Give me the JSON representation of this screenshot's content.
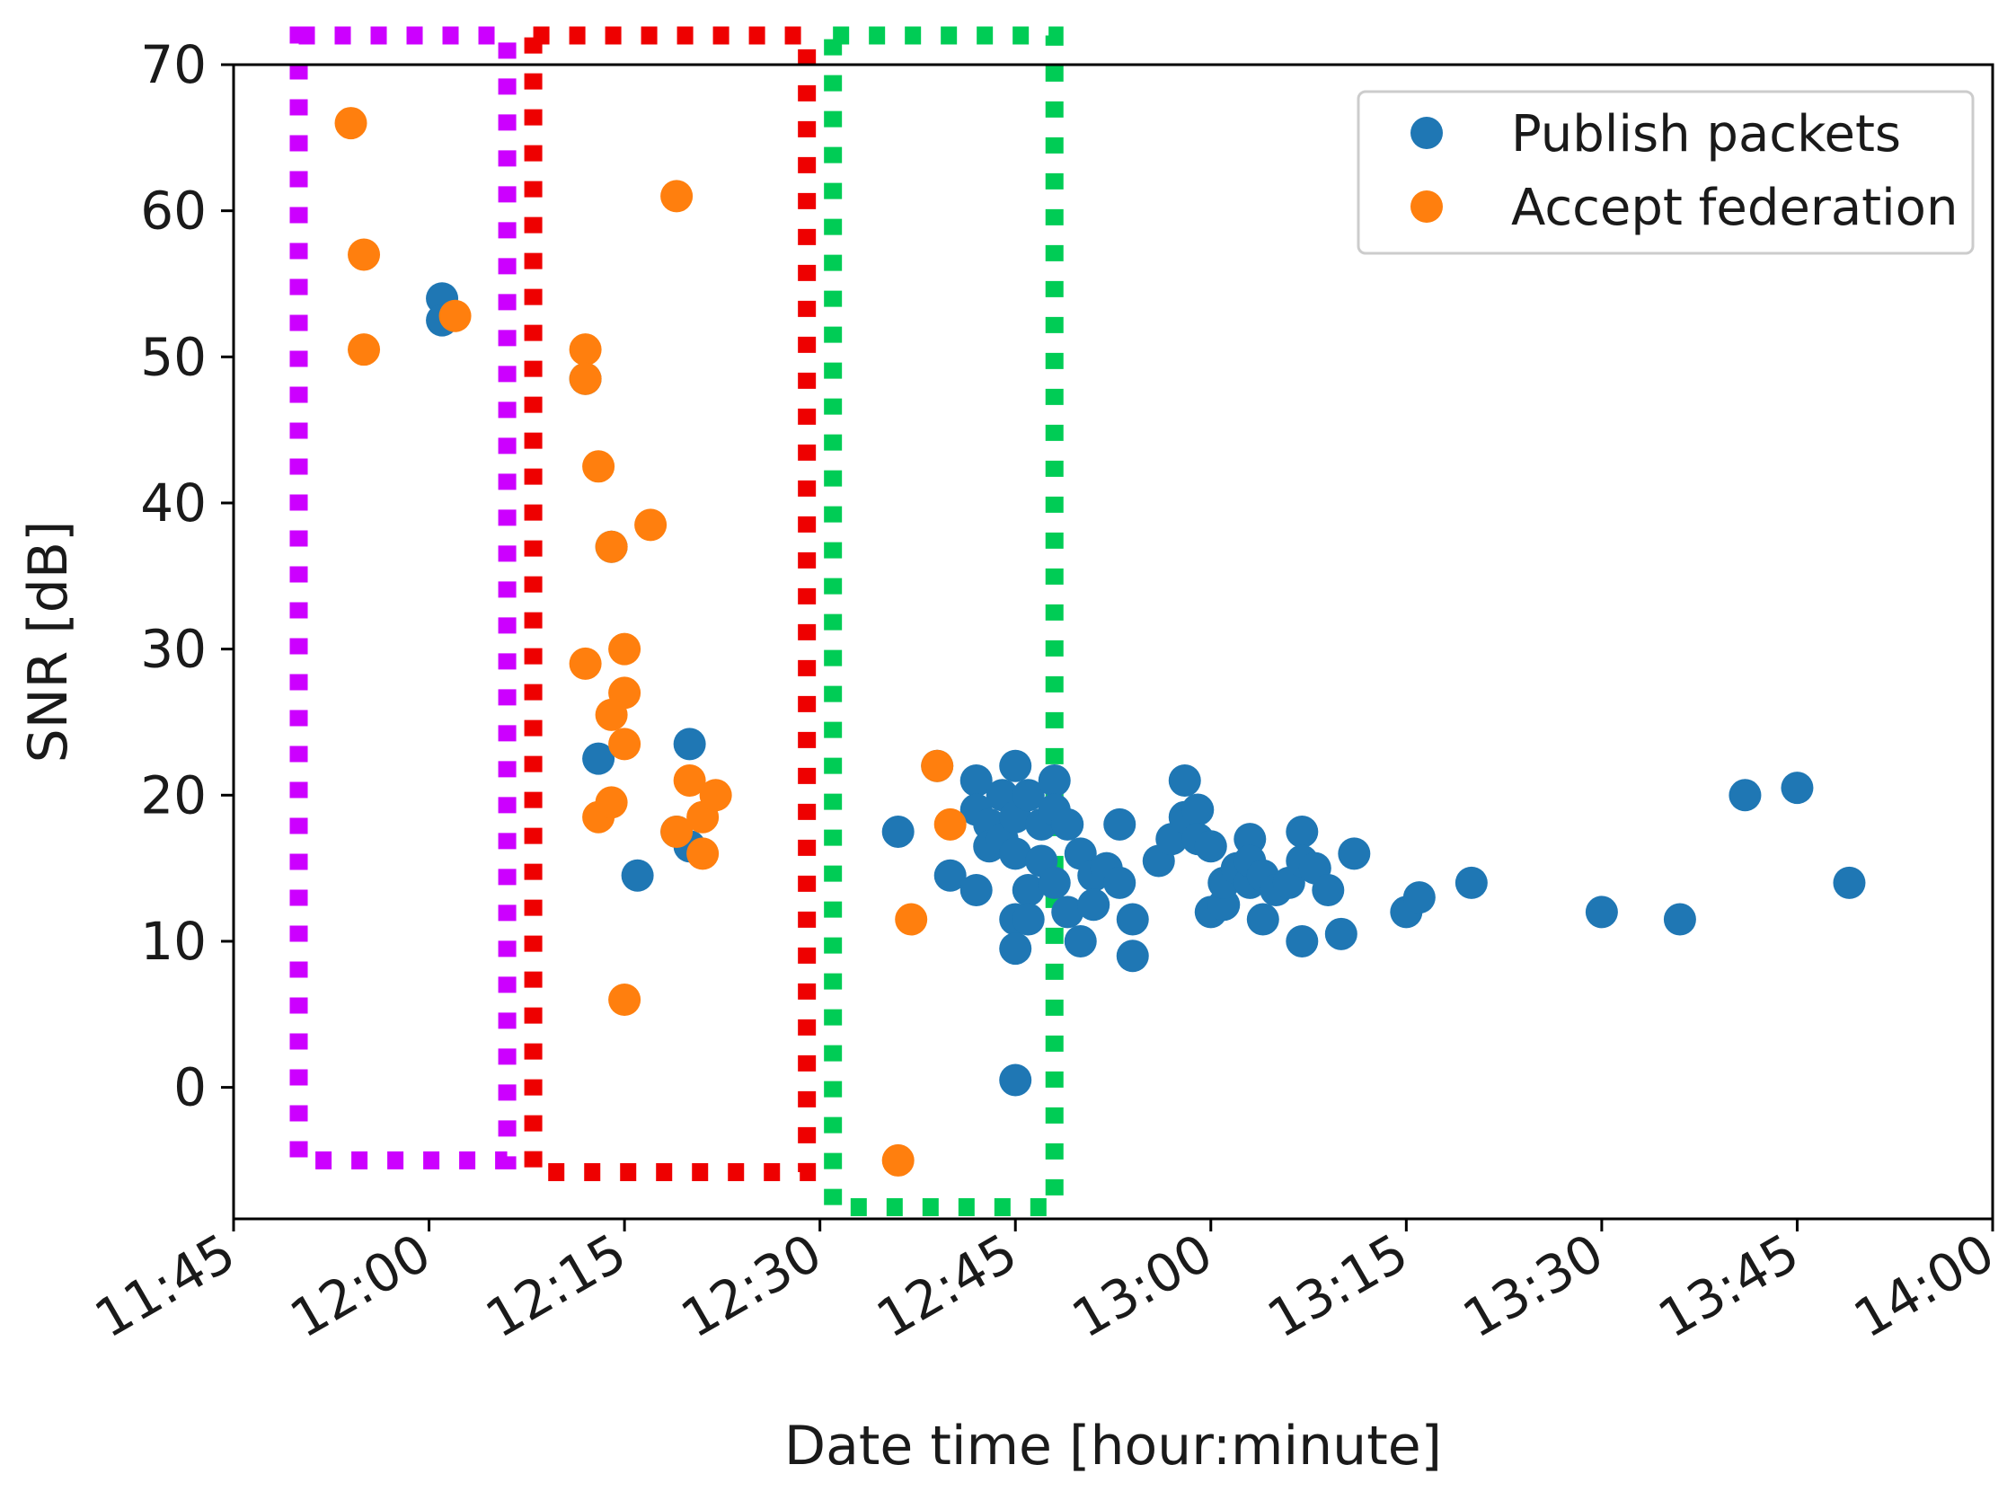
{
  "chart_data": {
    "type": "scatter",
    "title": "",
    "xlabel": "Date time [hour:minute]",
    "ylabel": "SNR [dB]",
    "xlim": [
      "11:45",
      "14:00"
    ],
    "ylim": [
      -9,
      70
    ],
    "x_ticks": [
      "11:45",
      "12:00",
      "12:15",
      "12:30",
      "12:45",
      "13:00",
      "13:15",
      "13:30",
      "13:45",
      "14:00"
    ],
    "y_ticks": [
      0,
      10,
      20,
      30,
      40,
      50,
      60,
      70
    ],
    "legend_position": "top-right",
    "series": [
      {
        "name": "Publish packets",
        "color": "#1f77b4",
        "points": [
          [
            "12:01",
            54
          ],
          [
            "12:01",
            52.5
          ],
          [
            "12:12",
            48.5
          ],
          [
            "12:14",
            37
          ],
          [
            "12:13",
            22.5
          ],
          [
            "12:16",
            14.5
          ],
          [
            "12:20",
            23.5
          ],
          [
            "12:19",
            17.5
          ],
          [
            "12:20",
            16.5
          ],
          [
            "12:36",
            17.5
          ],
          [
            "12:39",
            22
          ],
          [
            "12:40",
            14.5
          ],
          [
            "12:42",
            13.5
          ],
          [
            "12:42",
            21
          ],
          [
            "12:42",
            19
          ],
          [
            "12:43",
            18
          ],
          [
            "12:43",
            16.5
          ],
          [
            "12:44",
            20
          ],
          [
            "12:44",
            17
          ],
          [
            "12:45",
            18.5
          ],
          [
            "12:45",
            16
          ],
          [
            "12:45",
            22
          ],
          [
            "12:46",
            20
          ],
          [
            "12:46",
            13.5
          ],
          [
            "12:45",
            11.5
          ],
          [
            "12:46",
            11.5
          ],
          [
            "12:45",
            9.5
          ],
          [
            "12:45",
            0.5
          ],
          [
            "12:47",
            18
          ],
          [
            "12:47",
            15.5
          ],
          [
            "12:48",
            21
          ],
          [
            "12:48",
            19
          ],
          [
            "12:48",
            14
          ],
          [
            "12:49",
            12
          ],
          [
            "12:49",
            18
          ],
          [
            "12:50",
            16
          ],
          [
            "12:50",
            10
          ],
          [
            "12:51",
            14.5
          ],
          [
            "12:51",
            12.5
          ],
          [
            "12:52",
            15
          ],
          [
            "12:53",
            18
          ],
          [
            "12:53",
            14
          ],
          [
            "12:54",
            11.5
          ],
          [
            "12:54",
            9
          ],
          [
            "12:56",
            15.5
          ],
          [
            "12:57",
            17
          ],
          [
            "12:58",
            21
          ],
          [
            "12:58",
            18.5
          ],
          [
            "12:59",
            19
          ],
          [
            "12:59",
            17
          ],
          [
            "13:00",
            16.5
          ],
          [
            "13:00",
            12
          ],
          [
            "13:01",
            12.5
          ],
          [
            "13:01",
            14
          ],
          [
            "13:02",
            15
          ],
          [
            "13:03",
            14
          ],
          [
            "13:03",
            17
          ],
          [
            "13:03",
            15.5
          ],
          [
            "13:04",
            11.5
          ],
          [
            "13:04",
            14.5
          ],
          [
            "13:05",
            13.5
          ],
          [
            "13:06",
            14
          ],
          [
            "13:07",
            17.5
          ],
          [
            "13:07",
            15.5
          ],
          [
            "13:07",
            10
          ],
          [
            "13:08",
            15
          ],
          [
            "13:09",
            13.5
          ],
          [
            "13:10",
            10.5
          ],
          [
            "13:11",
            16
          ],
          [
            "13:15",
            12
          ],
          [
            "13:16",
            13
          ],
          [
            "13:20",
            14
          ],
          [
            "13:30",
            12
          ],
          [
            "13:36",
            11.5
          ],
          [
            "13:41",
            20
          ],
          [
            "13:45",
            20.5
          ],
          [
            "13:49",
            14
          ]
        ]
      },
      {
        "name": "Accept federation",
        "color": "#ff7f0e",
        "points": [
          [
            "11:54",
            66
          ],
          [
            "11:55",
            57
          ],
          [
            "11:55",
            50.5
          ],
          [
            "12:02",
            52.8
          ],
          [
            "12:12",
            50.5
          ],
          [
            "12:12",
            48.5
          ],
          [
            "12:13",
            42.5
          ],
          [
            "12:14",
            37
          ],
          [
            "12:17",
            38.5
          ],
          [
            "12:12",
            29
          ],
          [
            "12:15",
            30
          ],
          [
            "12:15",
            27
          ],
          [
            "12:14",
            25.5
          ],
          [
            "12:15",
            23.5
          ],
          [
            "12:13",
            18.5
          ],
          [
            "12:14",
            19.5
          ],
          [
            "12:19",
            61
          ],
          [
            "12:20",
            21
          ],
          [
            "12:19",
            17.5
          ],
          [
            "12:21",
            18.5
          ],
          [
            "12:22",
            20
          ],
          [
            "12:21",
            16
          ],
          [
            "12:15",
            6
          ],
          [
            "12:39",
            22
          ],
          [
            "12:40",
            18
          ],
          [
            "12:37",
            11.5
          ],
          [
            "12:36",
            -5
          ]
        ]
      }
    ],
    "annotations": [
      {
        "kind": "dotted-box",
        "color": "#cc00ff",
        "x_range": [
          "11:50",
          "12:06"
        ],
        "y_range": [
          -5,
          72
        ]
      },
      {
        "kind": "dotted-box",
        "color": "#ee0000",
        "x_range": [
          "12:08",
          "12:29"
        ],
        "y_range": [
          -5.8,
          72
        ]
      },
      {
        "kind": "dotted-box",
        "color": "#00cc55",
        "x_range": [
          "12:31",
          "12:48"
        ],
        "y_range": [
          -8.2,
          72
        ]
      }
    ]
  }
}
